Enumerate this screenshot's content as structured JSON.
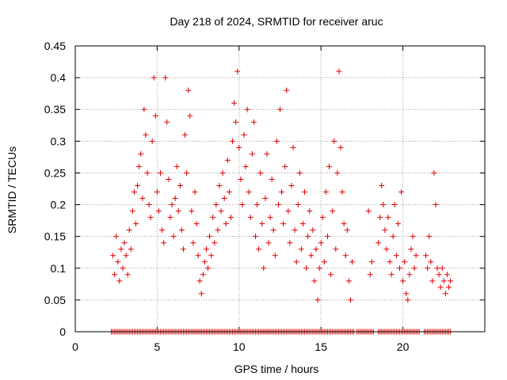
{
  "chart_data": {
    "type": "scatter",
    "title": "Day 218 of 2024, SRMTID for receiver aruc",
    "xlabel": "GPS time / hours",
    "ylabel": "SRMTID / TECUs",
    "xlim": [
      0,
      25
    ],
    "ylim": [
      0,
      0.45
    ],
    "xticks": [
      0,
      5,
      10,
      15,
      20
    ],
    "xtick_labels": [
      "0",
      "5",
      "10",
      "15",
      "20"
    ],
    "yticks": [
      0,
      0.05,
      0.1,
      0.15,
      0.2,
      0.25,
      0.3,
      0.35,
      0.4,
      0.45
    ],
    "ytick_labels": [
      "0",
      "0.05",
      "0.1",
      "0.15",
      "0.2",
      "0.25",
      "0.3",
      "0.35",
      "0.4",
      "0.45"
    ],
    "grid": true,
    "marker": "+",
    "color": "#e00000",
    "series": [
      {
        "name": "SRMTID",
        "points": [
          [
            2.3,
            0.12
          ],
          [
            2.4,
            0.09
          ],
          [
            2.5,
            0.15
          ],
          [
            2.6,
            0.11
          ],
          [
            2.7,
            0.08
          ],
          [
            2.8,
            0.13
          ],
          [
            2.9,
            0.1
          ],
          [
            3.0,
            0.14
          ],
          [
            3.1,
            0.12
          ],
          [
            3.2,
            0.09
          ],
          [
            3.3,
            0.16
          ],
          [
            3.4,
            0.13
          ],
          [
            3.5,
            0.19
          ],
          [
            3.6,
            0.22
          ],
          [
            3.7,
            0.17
          ],
          [
            3.8,
            0.23
          ],
          [
            3.9,
            0.26
          ],
          [
            4.0,
            0.28
          ],
          [
            4.1,
            0.21
          ],
          [
            4.2,
            0.35
          ],
          [
            4.3,
            0.31
          ],
          [
            4.4,
            0.25
          ],
          [
            4.5,
            0.2
          ],
          [
            4.6,
            0.18
          ],
          [
            4.7,
            0.3
          ],
          [
            4.8,
            0.4
          ],
          [
            4.9,
            0.34
          ],
          [
            5.0,
            0.22
          ],
          [
            5.1,
            0.19
          ],
          [
            5.2,
            0.25
          ],
          [
            5.3,
            0.16
          ],
          [
            5.4,
            0.14
          ],
          [
            5.5,
            0.4
          ],
          [
            5.6,
            0.33
          ],
          [
            5.7,
            0.24
          ],
          [
            5.8,
            0.18
          ],
          [
            5.9,
            0.2
          ],
          [
            6.0,
            0.15
          ],
          [
            6.1,
            0.21
          ],
          [
            6.2,
            0.26
          ],
          [
            6.3,
            0.19
          ],
          [
            6.4,
            0.23
          ],
          [
            6.5,
            0.16
          ],
          [
            6.6,
            0.13
          ],
          [
            6.7,
            0.31
          ],
          [
            6.8,
            0.25
          ],
          [
            6.9,
            0.38
          ],
          [
            7.0,
            0.34
          ],
          [
            7.1,
            0.19
          ],
          [
            7.2,
            0.14
          ],
          [
            7.3,
            0.22
          ],
          [
            7.4,
            0.17
          ],
          [
            7.5,
            0.12
          ],
          [
            7.6,
            0.08
          ],
          [
            7.7,
            0.06
          ],
          [
            7.8,
            0.09
          ],
          [
            7.9,
            0.11
          ],
          [
            8.0,
            0.13
          ],
          [
            8.1,
            0.1
          ],
          [
            8.2,
            0.15
          ],
          [
            8.3,
            0.12
          ],
          [
            8.4,
            0.18
          ],
          [
            8.5,
            0.14
          ],
          [
            8.6,
            0.2
          ],
          [
            8.7,
            0.16
          ],
          [
            8.8,
            0.23
          ],
          [
            8.9,
            0.19
          ],
          [
            9.0,
            0.25
          ],
          [
            9.1,
            0.21
          ],
          [
            9.2,
            0.17
          ],
          [
            9.3,
            0.27
          ],
          [
            9.4,
            0.22
          ],
          [
            9.5,
            0.18
          ],
          [
            9.6,
            0.3
          ],
          [
            9.7,
            0.36
          ],
          [
            9.8,
            0.33
          ],
          [
            9.9,
            0.41
          ],
          [
            10.0,
            0.29
          ],
          [
            10.1,
            0.24
          ],
          [
            10.2,
            0.2
          ],
          [
            10.3,
            0.31
          ],
          [
            10.4,
            0.26
          ],
          [
            10.5,
            0.35
          ],
          [
            10.6,
            0.22
          ],
          [
            10.7,
            0.18
          ],
          [
            10.8,
            0.28
          ],
          [
            10.9,
            0.33
          ],
          [
            11.0,
            0.15
          ],
          [
            11.1,
            0.2
          ],
          [
            11.2,
            0.13
          ],
          [
            11.3,
            0.25
          ],
          [
            11.4,
            0.17
          ],
          [
            11.5,
            0.1
          ],
          [
            11.6,
            0.21
          ],
          [
            11.7,
            0.28
          ],
          [
            11.8,
            0.14
          ],
          [
            11.9,
            0.18
          ],
          [
            12.0,
            0.24
          ],
          [
            12.1,
            0.16
          ],
          [
            12.2,
            0.12
          ],
          [
            12.3,
            0.3
          ],
          [
            12.4,
            0.2
          ],
          [
            12.5,
            0.35
          ],
          [
            12.6,
            0.22
          ],
          [
            12.7,
            0.17
          ],
          [
            12.8,
            0.26
          ],
          [
            12.9,
            0.38
          ],
          [
            13.0,
            0.19
          ],
          [
            13.1,
            0.14
          ],
          [
            13.2,
            0.23
          ],
          [
            13.3,
            0.29
          ],
          [
            13.4,
            0.16
          ],
          [
            13.5,
            0.11
          ],
          [
            13.6,
            0.2
          ],
          [
            13.7,
            0.25
          ],
          [
            13.8,
            0.13
          ],
          [
            13.9,
            0.17
          ],
          [
            14.0,
            0.22
          ],
          [
            14.1,
            0.1
          ],
          [
            14.2,
            0.15
          ],
          [
            14.3,
            0.19
          ],
          [
            14.4,
            0.12
          ],
          [
            14.5,
            0.16
          ],
          [
            14.6,
            0.08
          ],
          [
            14.7,
            0.13
          ],
          [
            14.8,
            0.05
          ],
          [
            14.9,
            0.1
          ],
          [
            15.0,
            0.14
          ],
          [
            15.1,
            0.18
          ],
          [
            15.2,
            0.11
          ],
          [
            15.3,
            0.22
          ],
          [
            15.4,
            0.15
          ],
          [
            15.5,
            0.26
          ],
          [
            15.6,
            0.09
          ],
          [
            15.7,
            0.19
          ],
          [
            15.8,
            0.3
          ],
          [
            15.9,
            0.13
          ],
          [
            16.0,
            0.25
          ],
          [
            16.1,
            0.41
          ],
          [
            16.2,
            0.29
          ],
          [
            16.3,
            0.22
          ],
          [
            16.4,
            0.17
          ],
          [
            16.5,
            0.12
          ],
          [
            16.6,
            0.16
          ],
          [
            16.7,
            0.08
          ],
          [
            16.8,
            0.05
          ],
          [
            16.9,
            0.11
          ],
          [
            17.9,
            0.19
          ],
          [
            18.0,
            0.09
          ],
          [
            18.1,
            0.11
          ],
          [
            18.5,
            0.14
          ],
          [
            18.6,
            0.18
          ],
          [
            18.7,
            0.23
          ],
          [
            18.8,
            0.2
          ],
          [
            18.9,
            0.16
          ],
          [
            19.0,
            0.13
          ],
          [
            19.1,
            0.18
          ],
          [
            19.2,
            0.11
          ],
          [
            19.3,
            0.09
          ],
          [
            19.4,
            0.15
          ],
          [
            19.5,
            0.2
          ],
          [
            19.6,
            0.12
          ],
          [
            19.7,
            0.17
          ],
          [
            19.8,
            0.1
          ],
          [
            19.9,
            0.22
          ],
          [
            20.0,
            0.08
          ],
          [
            20.1,
            0.11
          ],
          [
            20.2,
            0.06
          ],
          [
            20.3,
            0.05
          ],
          [
            20.4,
            0.09
          ],
          [
            20.5,
            0.13
          ],
          [
            20.6,
            0.15
          ],
          [
            20.7,
            0.1
          ],
          [
            20.8,
            0.12
          ],
          [
            21.4,
            0.12
          ],
          [
            21.5,
            0.1
          ],
          [
            21.6,
            0.15
          ],
          [
            21.7,
            0.11
          ],
          [
            21.8,
            0.08
          ],
          [
            21.9,
            0.25
          ],
          [
            22.0,
            0.2
          ],
          [
            22.1,
            0.1
          ],
          [
            22.2,
            0.09
          ],
          [
            22.3,
            0.07
          ],
          [
            22.4,
            0.1
          ],
          [
            22.5,
            0.08
          ],
          [
            22.6,
            0.06
          ],
          [
            22.7,
            0.09
          ],
          [
            22.8,
            0.07
          ],
          [
            22.9,
            0.08
          ]
        ]
      }
    ],
    "zero_band_ranges": [
      [
        2.2,
        17.0
      ],
      [
        17.2,
        18.2
      ],
      [
        18.5,
        21.0
      ],
      [
        21.3,
        22.9
      ]
    ]
  }
}
